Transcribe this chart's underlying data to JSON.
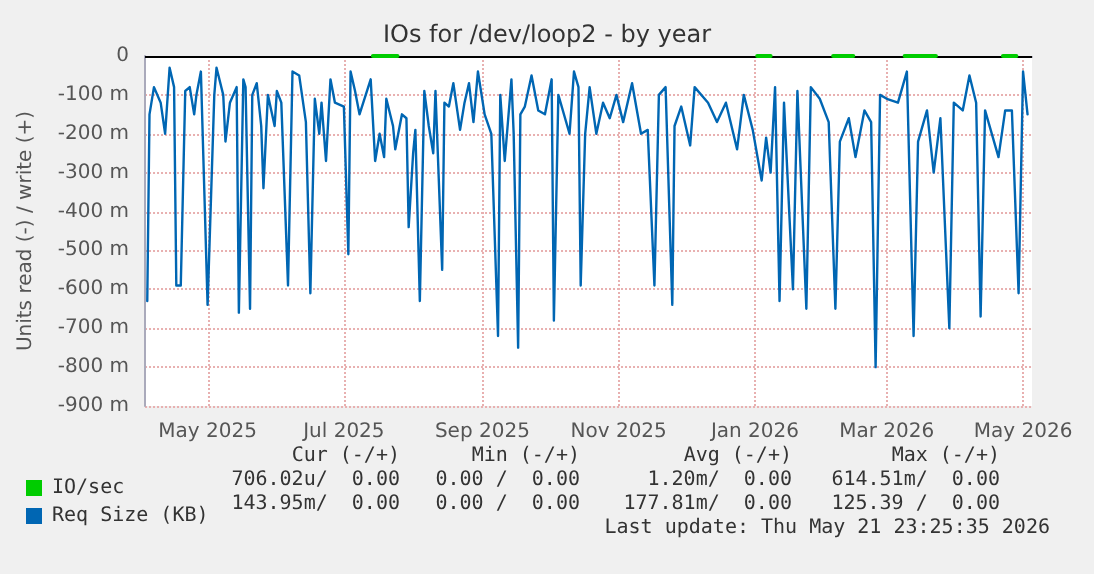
{
  "chart_data": {
    "type": "line",
    "title": "IOs for /dev/loop2 - by year",
    "ylabel": "Units read (-) / write (+)",
    "xlim": [
      "2025-04-17",
      "2026-05-19"
    ],
    "xticks": [
      {
        "value": "2025-05-15",
        "label": "May 2025"
      },
      {
        "value": "2025-07-15",
        "label": "Jul 2025"
      },
      {
        "value": "2025-09-15",
        "label": "Sep 2025"
      },
      {
        "value": "2025-11-15",
        "label": "Nov 2025"
      },
      {
        "value": "2026-01-15",
        "label": "Jan 2026"
      },
      {
        "value": "2026-03-15",
        "label": "Mar 2026"
      },
      {
        "value": "2026-05-15",
        "label": "May 2026"
      }
    ],
    "ylim": [
      -900,
      0
    ],
    "yticks": [
      {
        "value": -900,
        "label": "-900 m"
      },
      {
        "value": -800,
        "label": "-800 m"
      },
      {
        "value": -700,
        "label": "-700 m"
      },
      {
        "value": -600,
        "label": "-600 m"
      },
      {
        "value": -500,
        "label": "-500 m"
      },
      {
        "value": -400,
        "label": "-400 m"
      },
      {
        "value": -300,
        "label": "-300 m"
      },
      {
        "value": -200,
        "label": "-200 m"
      },
      {
        "value": -100,
        "label": "-100 m"
      },
      0
    ],
    "grid": true,
    "legend": "bottom left",
    "marker": "none",
    "line_style": "solid",
    "ref_lines": [
      {
        "axis": "y",
        "value": 0,
        "label": null,
        "color": "#000000"
      }
    ],
    "series": [
      {
        "name": "IO/sec",
        "color": "#00cc00",
        "x": [
          "2025-07-28",
          "2025-08-08",
          "2025-08-09",
          "2026-01-16",
          "2026-01-22",
          "2026-01-23",
          "2026-02-19",
          "2026-02-28",
          "2026-03-01",
          "2026-03-23",
          "2026-04-06",
          "2026-04-07",
          "2026-05-06",
          "2026-05-12"
        ],
        "values": [
          0,
          0,
          null,
          0,
          0,
          null,
          0,
          0,
          null,
          0,
          0,
          null,
          0,
          0
        ]
      },
      {
        "name": "Req Size (KB)",
        "color": "#0066b3",
        "x": [
          "2025-04-18",
          "2025-04-19",
          "2025-04-21",
          "2025-04-24",
          "2025-04-26",
          "2025-04-28",
          "2025-04-30",
          "2025-05-01",
          "2025-05-03",
          "2025-05-05",
          "2025-05-07",
          "2025-05-09",
          "2025-05-10",
          "2025-05-12",
          "2025-05-15",
          "2025-05-18",
          "2025-05-19",
          "2025-05-22",
          "2025-05-23",
          "2025-05-25",
          "2025-05-28",
          "2025-05-29",
          "2025-05-31",
          "2025-06-01",
          "2025-06-03",
          "2025-06-04",
          "2025-06-06",
          "2025-06-08",
          "2025-06-09",
          "2025-06-11",
          "2025-06-14",
          "2025-06-15",
          "2025-06-17",
          "2025-06-20",
          "2025-06-22",
          "2025-06-25",
          "2025-06-28",
          "2025-06-30",
          "2025-07-02",
          "2025-07-04",
          "2025-07-05",
          "2025-07-07",
          "2025-07-09",
          "2025-07-11",
          "2025-07-15",
          "2025-07-17",
          "2025-07-18",
          "2025-07-20",
          "2025-07-22",
          "2025-07-27",
          "2025-07-29",
          "2025-07-31",
          "2025-08-02",
          "2025-08-03",
          "2025-08-06",
          "2025-08-07",
          "2025-08-10",
          "2025-08-12",
          "2025-08-13",
          "2025-08-15",
          "2025-08-16",
          "2025-08-18",
          "2025-08-20",
          "2025-08-22",
          "2025-08-24",
          "2025-08-25",
          "2025-08-28",
          "2025-08-29",
          "2025-08-31",
          "2025-09-02",
          "2025-09-05",
          "2025-09-07",
          "2025-09-09",
          "2025-09-11",
          "2025-09-13",
          "2025-09-16",
          "2025-09-19",
          "2025-09-22",
          "2025-09-23",
          "2025-09-25",
          "2025-09-28",
          "2025-09-29",
          "2025-10-01",
          "2025-10-02",
          "2025-10-04",
          "2025-10-07",
          "2025-10-10",
          "2025-10-13",
          "2025-10-16",
          "2025-10-17",
          "2025-10-19",
          "2025-10-24",
          "2025-10-26",
          "2025-10-28",
          "2025-10-29",
          "2025-10-31",
          "2025-11-02",
          "2025-11-05",
          "2025-11-08",
          "2025-11-11",
          "2025-11-14",
          "2025-11-17",
          "2025-11-21",
          "2025-11-25",
          "2025-11-28",
          "2025-12-01",
          "2025-12-03",
          "2025-12-06",
          "2025-12-09",
          "2025-12-10",
          "2025-12-13",
          "2025-12-17",
          "2025-12-19",
          "2025-12-25",
          "2025-12-29",
          "2026-01-02",
          "2026-01-07",
          "2026-01-10",
          "2026-01-14",
          "2026-01-18",
          "2026-01-20",
          "2026-01-22",
          "2026-01-24",
          "2026-01-26",
          "2026-01-28",
          "2026-02-01",
          "2026-02-03",
          "2026-02-07",
          "2026-02-09",
          "2026-02-13",
          "2026-02-17",
          "2026-02-20",
          "2026-02-22",
          "2026-02-26",
          "2026-03-01",
          "2026-03-05",
          "2026-03-08",
          "2026-03-10",
          "2026-03-12",
          "2026-03-15",
          "2026-03-20",
          "2026-03-24",
          "2026-03-27",
          "2026-03-29",
          "2026-04-02",
          "2026-04-05",
          "2026-04-08",
          "2026-04-12",
          "2026-04-14",
          "2026-04-18",
          "2026-04-21",
          "2026-04-24",
          "2026-04-26",
          "2026-04-28",
          "2026-05-04",
          "2026-05-07",
          "2026-05-10",
          "2026-05-13",
          "2026-05-15",
          "2026-05-17"
        ],
        "values": [
          -630,
          -150,
          -80,
          -120,
          -200,
          -30,
          -80,
          -590,
          -590,
          -90,
          -80,
          -150,
          -100,
          -40,
          -640,
          -100,
          -30,
          -100,
          -220,
          -120,
          -80,
          -660,
          -60,
          -80,
          -650,
          -100,
          -70,
          -180,
          -340,
          -100,
          -180,
          -90,
          -120,
          -590,
          -40,
          -50,
          -170,
          -610,
          -110,
          -200,
          -120,
          -270,
          -60,
          -120,
          -130,
          -510,
          -40,
          -90,
          -150,
          -60,
          -270,
          -200,
          -260,
          -110,
          -180,
          -240,
          -150,
          -160,
          -440,
          -250,
          -190,
          -630,
          -90,
          -180,
          -250,
          -90,
          -550,
          -120,
          -130,
          -70,
          -190,
          -120,
          -70,
          -170,
          -40,
          -150,
          -200,
          -720,
          -100,
          -270,
          -60,
          -200,
          -750,
          -150,
          -130,
          -50,
          -140,
          -150,
          -60,
          -680,
          -100,
          -200,
          -40,
          -80,
          -590,
          -200,
          -80,
          -200,
          -120,
          -160,
          -100,
          -170,
          -70,
          -200,
          -190,
          -590,
          -100,
          -80,
          -640,
          -180,
          -130,
          -230,
          -80,
          -120,
          -170,
          -120,
          -240,
          -100,
          -190,
          -320,
          -210,
          -300,
          -80,
          -630,
          -120,
          -600,
          -90,
          -650,
          -80,
          -110,
          -170,
          -650,
          -220,
          -160,
          -260,
          -140,
          -170,
          -800,
          -100,
          -110,
          -120,
          -40,
          -720,
          -220,
          -140,
          -300,
          -160,
          -700,
          -120,
          -140,
          -50,
          -120,
          -670,
          -140,
          -260,
          -140,
          -140,
          -610,
          -40,
          -150
        ]
      }
    ],
    "annotations": [
      "Cur (-/+)",
      "Min (-/+)",
      "Avg (-/+)",
      "Max (-/+)",
      "706.02u/  0.00",
      "0.00 /  0.00",
      "1.20m/  0.00",
      "614.51m/  0.00",
      "143.95m/  0.00",
      "0.00 /  0.00",
      "177.81m/  0.00",
      "125.39 /  0.00",
      "Last update: Thu May 21 23:25:35 2026"
    ]
  }
}
